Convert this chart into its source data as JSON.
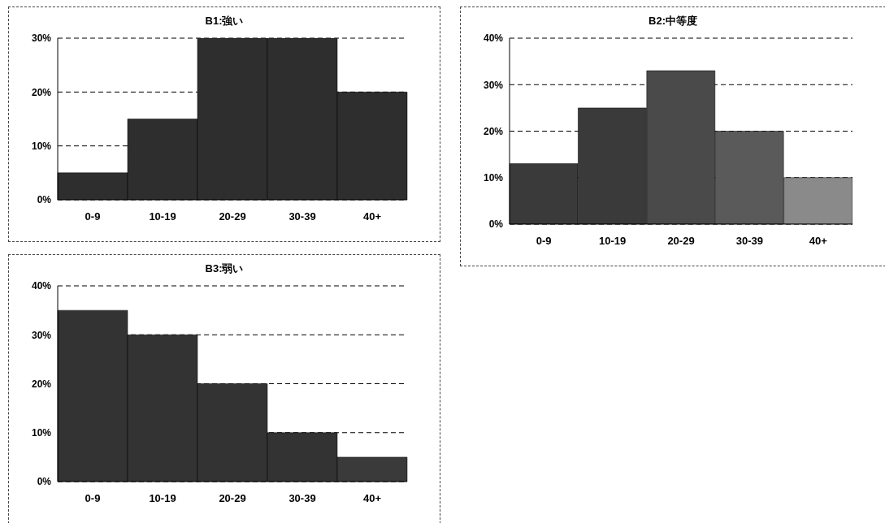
{
  "chart_data": [
    {
      "type": "bar",
      "title": "B1:強い",
      "categories": [
        "0-9",
        "10-19",
        "20-29",
        "30-39",
        "40+"
      ],
      "values": [
        5,
        15,
        30,
        30,
        20
      ],
      "colors": [
        "#2e2e2e",
        "#2e2e2e",
        "#2e2e2e",
        "#2e2e2e",
        "#2e2e2e"
      ],
      "ylim": [
        0,
        30
      ],
      "yticks": [
        {
          "value": 0,
          "label": "0%"
        },
        {
          "value": 10,
          "label": "10%"
        },
        {
          "value": 20,
          "label": "20%"
        },
        {
          "value": 30,
          "label": "30%"
        }
      ],
      "grid": "y"
    },
    {
      "type": "bar",
      "title": "B2:中等度",
      "categories": [
        "0-9",
        "10-19",
        "20-29",
        "30-39",
        "40+"
      ],
      "values": [
        13,
        25,
        33,
        20,
        10
      ],
      "colors": [
        "#3a3a3a",
        "#3a3a3a",
        "#4a4a4a",
        "#5a5a5a",
        "#8a8a8a"
      ],
      "ylim": [
        0,
        40
      ],
      "yticks": [
        {
          "value": 0,
          "label": "0%"
        },
        {
          "value": 10,
          "label": "10%"
        },
        {
          "value": 20,
          "label": "20%"
        },
        {
          "value": 30,
          "label": "30%"
        },
        {
          "value": 40,
          "label": "40%"
        }
      ],
      "grid": "y"
    },
    {
      "type": "bar",
      "title": "B3:弱い",
      "categories": [
        "0-9",
        "10-19",
        "20-29",
        "30-39",
        "40+"
      ],
      "values": [
        35,
        30,
        20,
        10,
        5
      ],
      "colors": [
        "#333333",
        "#333333",
        "#333333",
        "#333333",
        "#3a3a3a"
      ],
      "ylim": [
        0,
        40
      ],
      "yticks": [
        {
          "value": 0,
          "label": "0%"
        },
        {
          "value": 10,
          "label": "10%"
        },
        {
          "value": 20,
          "label": "20%"
        },
        {
          "value": 30,
          "label": "30%"
        },
        {
          "value": 40,
          "label": "40%"
        }
      ],
      "grid": "y"
    }
  ]
}
